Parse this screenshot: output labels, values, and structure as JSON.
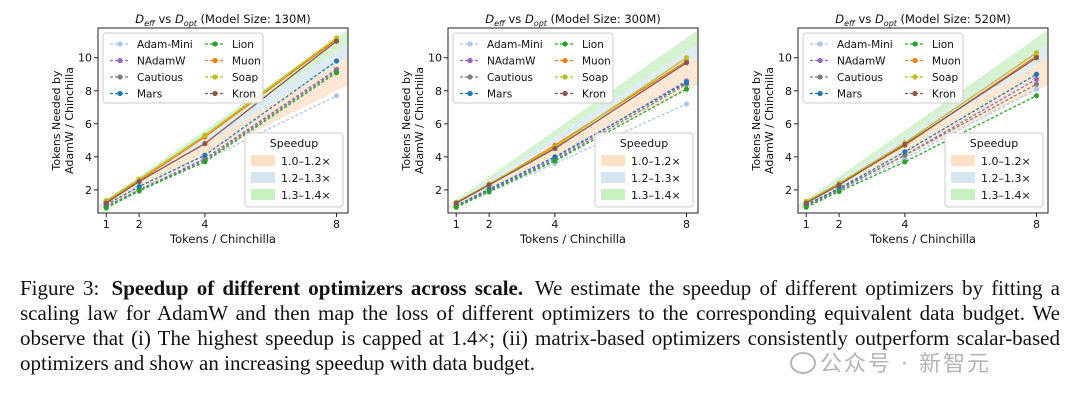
{
  "chart_data": [
    {
      "type": "line",
      "title": "D_eff vs D_opt (Model Size: 130M)",
      "title_parts": {
        "a": "D",
        "a_sub": "eff",
        "mid": " vs ",
        "b": "D",
        "b_sub": "opt",
        "rest": " (Model Size: 130M)"
      },
      "xlabel": "Tokens / Chinchilla",
      "ylabel": [
        "Tokens Needed by",
        "AdamW / Chinchilla"
      ],
      "x": [
        1,
        2,
        4,
        8
      ],
      "xticks": [
        "1",
        "2",
        "4",
        "8"
      ],
      "yticks": [
        2,
        4,
        6,
        8,
        10
      ],
      "xlim": [
        0.75,
        8.35
      ],
      "ylim": [
        0.6,
        11.8
      ],
      "series": [
        {
          "name": "Adam-Mini",
          "color": "#aec7e8",
          "values": [
            0.95,
            1.9,
            3.8,
            7.7
          ]
        },
        {
          "name": "NAdamW",
          "color": "#9467bd",
          "values": [
            0.98,
            2.0,
            3.9,
            9.3
          ]
        },
        {
          "name": "Cautious",
          "color": "#7f7f7f",
          "values": [
            1.0,
            2.0,
            3.8,
            9.2
          ]
        },
        {
          "name": "Mars",
          "color": "#1f77b4",
          "values": [
            1.1,
            2.2,
            4.1,
            9.8
          ]
        },
        {
          "name": "Lion",
          "color": "#2ca02c",
          "values": [
            0.9,
            1.95,
            3.7,
            9.1
          ]
        },
        {
          "name": "Muon",
          "color": "#ff7f0e",
          "values": [
            1.25,
            2.55,
            5.2,
            11.1
          ]
        },
        {
          "name": "Soap",
          "color": "#bcbd22",
          "values": [
            1.35,
            2.65,
            5.3,
            11.2
          ]
        },
        {
          "name": "Kron",
          "color": "#8c564b",
          "values": [
            1.2,
            2.5,
            4.8,
            11.0
          ]
        }
      ],
      "bands": [
        {
          "name": "1.0–1.2×",
          "color": "#fde0c5",
          "lower": 1.0,
          "upper": 1.2
        },
        {
          "name": "1.2–1.3×",
          "color": "#d6e6f0",
          "lower": 1.2,
          "upper": 1.3
        },
        {
          "name": "1.3–1.4×",
          "color": "#c7efc0",
          "lower": 1.3,
          "upper": 1.4
        }
      ],
      "band_legend_title": "Speedup",
      "legend_placement": "top-left (series), bottom-right (bands)",
      "grid": false
    },
    {
      "type": "line",
      "title": "D_eff vs D_opt (Model Size: 300M)",
      "title_parts": {
        "a": "D",
        "a_sub": "eff",
        "mid": " vs ",
        "b": "D",
        "b_sub": "opt",
        "rest": " (Model Size: 300M)"
      },
      "xlabel": "Tokens / Chinchilla",
      "ylabel": [
        "Tokens Needed by",
        "AdamW / Chinchilla"
      ],
      "x": [
        1,
        2,
        4,
        8
      ],
      "xticks": [
        "1",
        "2",
        "4",
        "8"
      ],
      "yticks": [
        2,
        4,
        6,
        8,
        10
      ],
      "xlim": [
        0.75,
        8.35
      ],
      "ylim": [
        0.6,
        11.8
      ],
      "series": [
        {
          "name": "Adam-Mini",
          "color": "#aec7e8",
          "values": [
            0.95,
            1.85,
            3.6,
            7.2
          ]
        },
        {
          "name": "NAdamW",
          "color": "#9467bd",
          "values": [
            1.0,
            2.0,
            3.9,
            8.6
          ]
        },
        {
          "name": "Cautious",
          "color": "#7f7f7f",
          "values": [
            1.0,
            1.95,
            3.8,
            8.4
          ]
        },
        {
          "name": "Mars",
          "color": "#1f77b4",
          "values": [
            1.05,
            2.05,
            4.0,
            8.5
          ]
        },
        {
          "name": "Lion",
          "color": "#2ca02c",
          "values": [
            0.95,
            1.9,
            3.75,
            8.1
          ]
        },
        {
          "name": "Muon",
          "color": "#ff7f0e",
          "values": [
            1.2,
            2.3,
            4.7,
            9.8
          ]
        },
        {
          "name": "Soap",
          "color": "#bcbd22",
          "values": [
            1.25,
            2.35,
            4.6,
            10.0
          ]
        },
        {
          "name": "Kron",
          "color": "#8c564b",
          "values": [
            1.2,
            2.3,
            4.5,
            9.7
          ]
        }
      ],
      "bands": [
        {
          "name": "1.0–1.2×",
          "color": "#fde0c5",
          "lower": 1.0,
          "upper": 1.2
        },
        {
          "name": "1.2–1.3×",
          "color": "#d6e6f0",
          "lower": 1.2,
          "upper": 1.3
        },
        {
          "name": "1.3–1.4×",
          "color": "#c7efc0",
          "lower": 1.3,
          "upper": 1.4
        }
      ],
      "band_legend_title": "Speedup",
      "legend_placement": "top-left (series), bottom-right (bands)",
      "grid": false
    },
    {
      "type": "line",
      "title": "D_eff vs D_opt (Model Size: 520M)",
      "title_parts": {
        "a": "D",
        "a_sub": "eff",
        "mid": " vs ",
        "b": "D",
        "b_sub": "opt",
        "rest": " (Model Size: 520M)"
      },
      "xlabel": "Tokens / Chinchilla",
      "ylabel": [
        "Tokens Needed by",
        "AdamW / Chinchilla"
      ],
      "x": [
        1,
        2,
        4,
        8
      ],
      "xticks": [
        "1",
        "2",
        "4",
        "8"
      ],
      "yticks": [
        2,
        4,
        6,
        8,
        10
      ],
      "xlim": [
        0.75,
        8.35
      ],
      "ylim": [
        0.6,
        11.8
      ],
      "series": [
        {
          "name": "Adam-Mini",
          "color": "#aec7e8",
          "values": [
            1.0,
            1.95,
            3.9,
            8.1
          ]
        },
        {
          "name": "NAdamW",
          "color": "#9467bd",
          "values": [
            1.05,
            2.0,
            4.1,
            8.7
          ]
        },
        {
          "name": "Cautious",
          "color": "#7f7f7f",
          "values": [
            1.05,
            2.05,
            4.1,
            8.4
          ]
        },
        {
          "name": "Mars",
          "color": "#1f77b4",
          "values": [
            1.1,
            2.1,
            4.3,
            9.0
          ]
        },
        {
          "name": "Lion",
          "color": "#2ca02c",
          "values": [
            0.95,
            1.9,
            3.7,
            7.7
          ]
        },
        {
          "name": "Muon",
          "color": "#ff7f0e",
          "values": [
            1.25,
            2.35,
            4.7,
            10.1
          ]
        },
        {
          "name": "Soap",
          "color": "#bcbd22",
          "values": [
            1.3,
            2.4,
            4.85,
            10.3
          ]
        },
        {
          "name": "Kron",
          "color": "#8c564b",
          "values": [
            1.2,
            2.3,
            4.75,
            10.0
          ]
        }
      ],
      "bands": [
        {
          "name": "1.0–1.2×",
          "color": "#fde0c5",
          "lower": 1.0,
          "upper": 1.2
        },
        {
          "name": "1.2–1.3×",
          "color": "#d6e6f0",
          "lower": 1.2,
          "upper": 1.3
        },
        {
          "name": "1.3–1.4×",
          "color": "#c7efc0",
          "lower": 1.3,
          "upper": 1.4
        }
      ],
      "band_legend_title": "Speedup",
      "legend_placement": "top-left (series), bottom-right (bands)",
      "grid": false
    }
  ],
  "caption": {
    "label": "Figure 3:",
    "bold": "Speedup of different optimizers across scale.",
    "text": "We estimate the speedup of different optimizers by fitting a scaling law for AdamW and then map the loss of different optimizers to the corresponding equivalent data budget. We observe that (i) The highest speedup is capped at 1.4×; (ii) matrix-based optimizers consistently outperform scalar-based optimizers and show an increasing speedup with data budget."
  },
  "watermark": "公众号 · 新智元"
}
